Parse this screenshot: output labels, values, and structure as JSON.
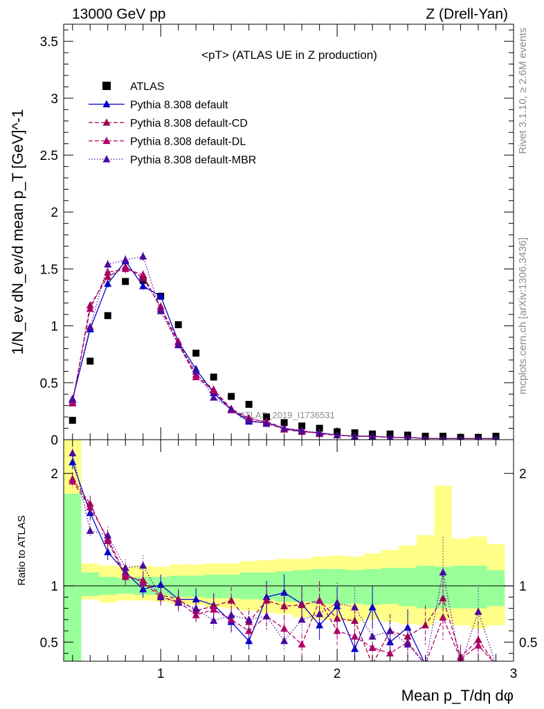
{
  "header": {
    "left": "13000 GeV pp",
    "right": "Z (Drell-Yan)"
  },
  "plot_title": "<pT> (ATLAS UE in Z production)",
  "side_labels": {
    "rivet": "Rivet 3.1.10, ≥ 2.6M events",
    "mcplots": "mcplots.cern.ch [arXiv:1306.3436]"
  },
  "watermark": "ATLAS_2019_I1736531",
  "colors": {
    "atlas": "#000000",
    "default": "#0000cc",
    "cd": "#a00050",
    "dl": "#b0006a",
    "mbr": "#4b0aa0",
    "band_inner": "#99ff99",
    "band_outer": "#ffff88"
  },
  "chart_data": [
    {
      "type": "scatter",
      "panel": "main",
      "ylabel": "1/N_ev dN_ev/d mean p_T [GeV]^-1",
      "xlim": [
        0.45,
        3.0
      ],
      "ylim": [
        0,
        3.65
      ],
      "yticks": [
        0,
        0.5,
        1,
        1.5,
        2,
        2.5,
        3,
        3.5
      ],
      "ytick_labels": [
        "0",
        "0.5",
        "1",
        "1.5",
        "2",
        "2.5",
        "3",
        "3.5"
      ],
      "legend_position": "top-left",
      "x": [
        0.5,
        0.6,
        0.7,
        0.8,
        0.9,
        1.0,
        1.1,
        1.2,
        1.3,
        1.4,
        1.5,
        1.6,
        1.7,
        1.8,
        1.9,
        2.0,
        2.1,
        2.2,
        2.3,
        2.4,
        2.5,
        2.6,
        2.7,
        2.8,
        2.9
      ],
      "series": [
        {
          "name": "ATLAS",
          "marker": "square",
          "values": [
            0.17,
            0.69,
            1.09,
            1.39,
            1.4,
            1.26,
            1.01,
            0.76,
            0.55,
            0.38,
            0.31,
            0.2,
            0.15,
            0.12,
            0.1,
            0.07,
            0.06,
            0.05,
            0.05,
            0.04,
            0.03,
            0.03,
            0.02,
            0.02,
            0.03
          ]
        },
        {
          "name": "Pythia 8.308 default",
          "line": "solid",
          "values": [
            0.35,
            0.97,
            1.37,
            1.57,
            1.35,
            1.26,
            0.86,
            0.62,
            0.41,
            0.26,
            0.16,
            0.15,
            0.1,
            0.07,
            0.06,
            0.04,
            0.03,
            0.03,
            0.02,
            0.02,
            0.01,
            0.01,
            0.01,
            0.01,
            0.01
          ]
        },
        {
          "name": "Pythia 8.308 default-CD",
          "line": "dashed",
          "values": [
            0.32,
            1.18,
            1.43,
            1.52,
            1.42,
            1.17,
            0.86,
            0.57,
            0.44,
            0.27,
            0.19,
            0.15,
            0.09,
            0.07,
            0.06,
            0.04,
            0.03,
            0.03,
            0.02,
            0.02,
            0.01,
            0.01,
            0.01,
            0.01,
            0.01
          ]
        },
        {
          "name": "Pythia 8.308 default-DL",
          "line": "dashed",
          "values": [
            0.33,
            1.15,
            1.47,
            1.5,
            1.45,
            1.15,
            0.84,
            0.55,
            0.43,
            0.26,
            0.18,
            0.16,
            0.1,
            0.08,
            0.05,
            0.04,
            0.03,
            0.03,
            0.02,
            0.02,
            0.01,
            0.01,
            0.01,
            0.01,
            0.01
          ]
        },
        {
          "name": "Pythia 8.308 default-MBR",
          "line": "dotted",
          "values": [
            0.36,
            0.99,
            1.54,
            1.58,
            1.61,
            1.13,
            0.83,
            0.6,
            0.37,
            0.27,
            0.17,
            0.14,
            0.1,
            0.08,
            0.06,
            0.04,
            0.03,
            0.03,
            0.02,
            0.02,
            0.01,
            0.01,
            0.01,
            0.01,
            0.01
          ]
        }
      ]
    },
    {
      "type": "line",
      "panel": "ratio",
      "xlabel": "Mean p_T/dη dφ",
      "ylabel": "Ratio to ATLAS",
      "xlim": [
        0.45,
        3.0
      ],
      "ylim": [
        0.33,
        2.3
      ],
      "xticks": [
        1,
        2,
        3
      ],
      "xtick_labels": [
        "1",
        "2",
        "3"
      ],
      "yticks": [
        0.5,
        1,
        2
      ],
      "ytick_labels": [
        "0.5",
        "1",
        "2"
      ],
      "reference_line": 1,
      "band_inner": [
        [
          0.5,
          0.33,
          1.82
        ],
        [
          0.6,
          0.91,
          1.12
        ],
        [
          0.7,
          0.92,
          1.08
        ],
        [
          0.8,
          0.93,
          1.07
        ],
        [
          0.9,
          0.92,
          1.08
        ],
        [
          1.0,
          0.92,
          1.08
        ],
        [
          1.1,
          0.9,
          1.09
        ],
        [
          1.2,
          0.9,
          1.09
        ],
        [
          1.3,
          0.89,
          1.1
        ],
        [
          1.4,
          0.89,
          1.1
        ],
        [
          1.5,
          0.88,
          1.12
        ],
        [
          1.6,
          0.88,
          1.12
        ],
        [
          1.7,
          0.86,
          1.13
        ],
        [
          1.8,
          0.86,
          1.14
        ],
        [
          1.9,
          0.84,
          1.15
        ],
        [
          2.0,
          0.84,
          1.15
        ],
        [
          2.1,
          0.84,
          1.14
        ],
        [
          2.2,
          0.83,
          1.15
        ],
        [
          2.3,
          0.84,
          1.16
        ],
        [
          2.4,
          0.82,
          1.16
        ],
        [
          2.5,
          0.8,
          1.18
        ],
        [
          2.6,
          0.8,
          1.17
        ],
        [
          2.7,
          0.8,
          1.18
        ],
        [
          2.8,
          0.8,
          1.18
        ],
        [
          2.9,
          0.82,
          1.14
        ]
      ],
      "band_outer": [
        [
          0.5,
          0.33,
          2.3
        ],
        [
          0.6,
          0.88,
          1.2
        ],
        [
          0.7,
          0.85,
          1.18
        ],
        [
          0.8,
          0.87,
          1.17
        ],
        [
          0.9,
          0.87,
          1.18
        ],
        [
          1.0,
          0.86,
          1.17
        ],
        [
          1.1,
          0.84,
          1.19
        ],
        [
          1.2,
          0.83,
          1.19
        ],
        [
          1.3,
          0.81,
          1.2
        ],
        [
          1.4,
          0.8,
          1.2
        ],
        [
          1.5,
          0.78,
          1.22
        ],
        [
          1.6,
          0.76,
          1.23
        ],
        [
          1.7,
          0.75,
          1.24
        ],
        [
          1.8,
          0.72,
          1.24
        ],
        [
          1.9,
          0.7,
          1.26
        ],
        [
          2.0,
          0.7,
          1.27
        ],
        [
          2.1,
          0.68,
          1.26
        ],
        [
          2.2,
          0.7,
          1.29
        ],
        [
          2.3,
          0.68,
          1.32
        ],
        [
          2.4,
          0.66,
          1.36
        ],
        [
          2.5,
          0.65,
          1.45
        ],
        [
          2.6,
          0.7,
          1.89
        ],
        [
          2.7,
          0.65,
          1.42
        ],
        [
          2.8,
          0.62,
          1.44
        ],
        [
          2.9,
          0.65,
          1.37
        ]
      ],
      "x": [
        0.5,
        0.6,
        0.7,
        0.8,
        0.9,
        1.0,
        1.1,
        1.2,
        1.3,
        1.4,
        1.5,
        1.6,
        1.7,
        1.8,
        1.9,
        2.0,
        2.1,
        2.2,
        2.3,
        2.4,
        2.5,
        2.6,
        2.7,
        2.8,
        2.9
      ],
      "series": [
        {
          "name": "Pythia 8.308 default",
          "line": "solid",
          "values": [
            2.1,
            1.65,
            1.3,
            1.12,
            0.97,
            1.01,
            0.88,
            0.88,
            0.83,
            0.68,
            0.51,
            0.9,
            0.94,
            0.84,
            0.65,
            0.82,
            0.44,
            0.81,
            0.5,
            0.63,
            0.3,
            0.3,
            0.3,
            0.3,
            0.3
          ]
        },
        {
          "name": "Pythia 8.308 default-CD",
          "line": "dashed",
          "values": [
            1.95,
            1.73,
            1.4,
            1.08,
            1.05,
            0.92,
            0.88,
            0.78,
            0.82,
            0.87,
            0.68,
            0.87,
            0.82,
            0.83,
            0.87,
            0.71,
            0.69,
            0.3,
            0.6,
            0.55,
            0.65,
            0.89,
            0.37,
            0.52,
            0.3
          ]
        },
        {
          "name": "Pythia 8.308 default-DL",
          "line": "dashed",
          "values": [
            1.93,
            1.7,
            1.42,
            1.1,
            1.03,
            0.9,
            0.86,
            0.74,
            0.79,
            0.7,
            0.6,
            0.73,
            0.62,
            0.48,
            0.87,
            0.6,
            0.55,
            0.45,
            0.4,
            0.5,
            0.3,
            0.72,
            0.35,
            0.47,
            0.3
          ]
        },
        {
          "name": "Pythia 8.308 default-MBR",
          "line": "dotted",
          "values": [
            2.18,
            1.49,
            1.45,
            1.16,
            1.18,
            0.9,
            0.85,
            0.8,
            0.69,
            0.74,
            0.7,
            0.73,
            0.51,
            0.7,
            0.75,
            0.85,
            0.81,
            0.55,
            0.6,
            0.48,
            0.3,
            1.12,
            0.3,
            0.77,
            0.3
          ]
        }
      ]
    }
  ]
}
